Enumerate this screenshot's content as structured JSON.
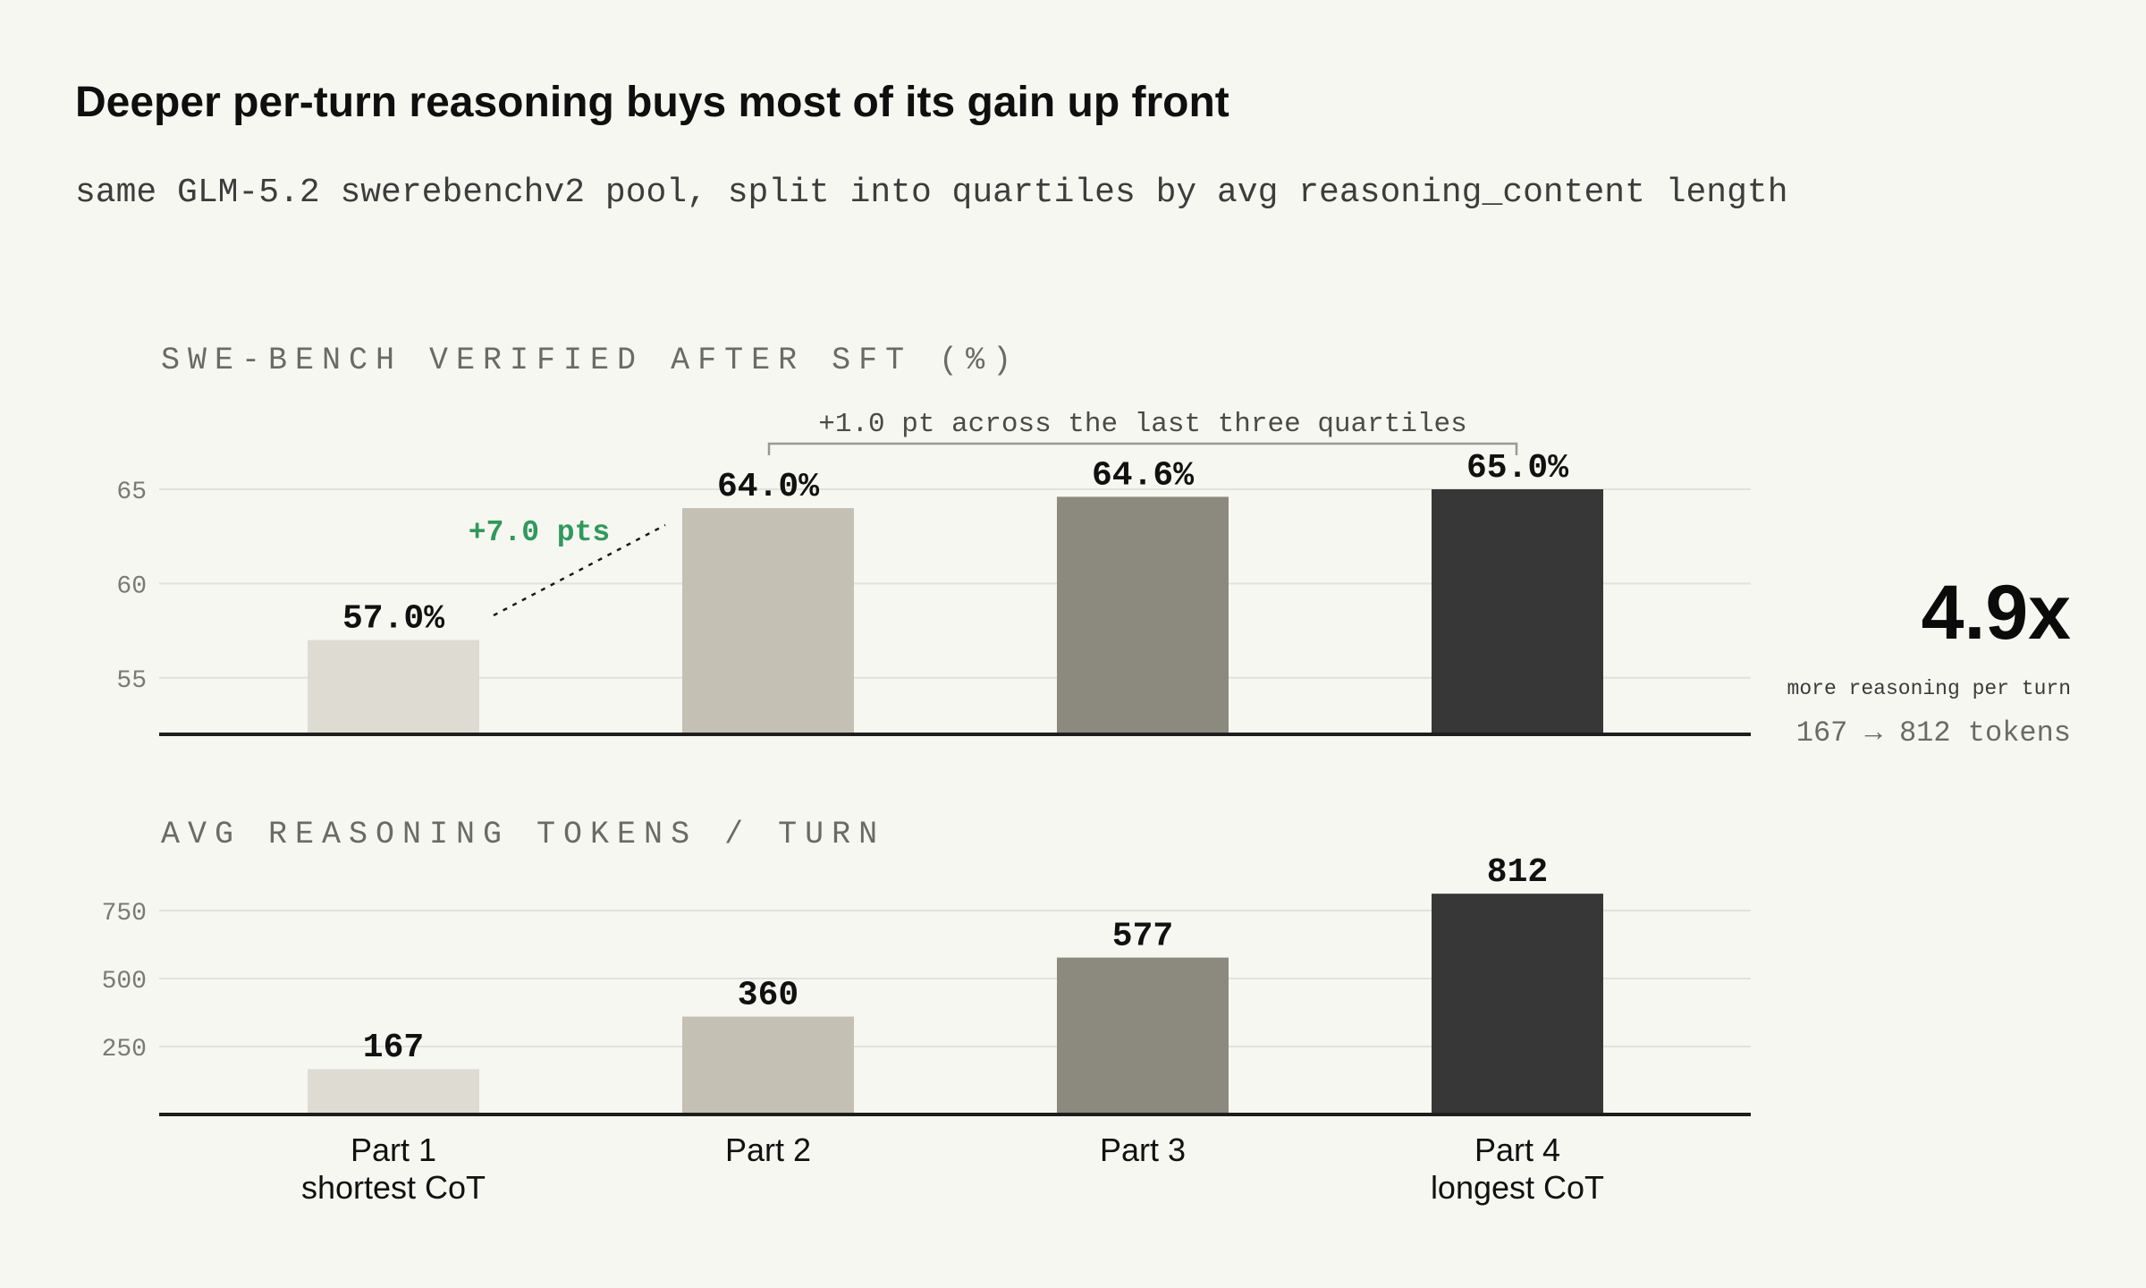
{
  "title": "Deeper per-turn reasoning buys most of its gain up front",
  "subtitle": "same GLM-5.2 swerebenchv2 pool, split into quartiles by avg reasoning_content length",
  "colors": [
    "#dedbd2",
    "#c4c0b4",
    "#8c897e",
    "#373737"
  ],
  "categories": [
    {
      "line1": "Part 1",
      "line2": "shortest CoT"
    },
    {
      "line1": "Part 2",
      "line2": ""
    },
    {
      "line1": "Part 3",
      "line2": ""
    },
    {
      "line1": "Part 4",
      "line2": "longest CoT"
    }
  ],
  "annotations": {
    "bracket_text": "+1.0 pt across the last three quartiles",
    "delta_text": "+7.0 pts"
  },
  "summary": {
    "big_stat": "4.9x",
    "caption": "more reasoning per turn",
    "detail": "167 → 812 tokens"
  },
  "chart_data": [
    {
      "type": "bar",
      "title": "SWE-BENCH VERIFIED AFTER SFT (%)",
      "categories": [
        "Part 1",
        "Part 2",
        "Part 3",
        "Part 4"
      ],
      "values": [
        57.0,
        64.0,
        64.6,
        65.0
      ],
      "value_labels": [
        "57.0%",
        "64.0%",
        "64.6%",
        "65.0%"
      ],
      "yticks": [
        55,
        60,
        65
      ],
      "ylim": [
        52,
        65
      ],
      "grid": true
    },
    {
      "type": "bar",
      "title": "AVG REASONING TOKENS / TURN",
      "categories": [
        "Part 1",
        "Part 2",
        "Part 3",
        "Part 4"
      ],
      "values": [
        167,
        360,
        577,
        812
      ],
      "value_labels": [
        "167",
        "360",
        "577",
        "812"
      ],
      "yticks": [
        250,
        500,
        750
      ],
      "ylim": [
        0,
        750
      ],
      "grid": true
    }
  ]
}
